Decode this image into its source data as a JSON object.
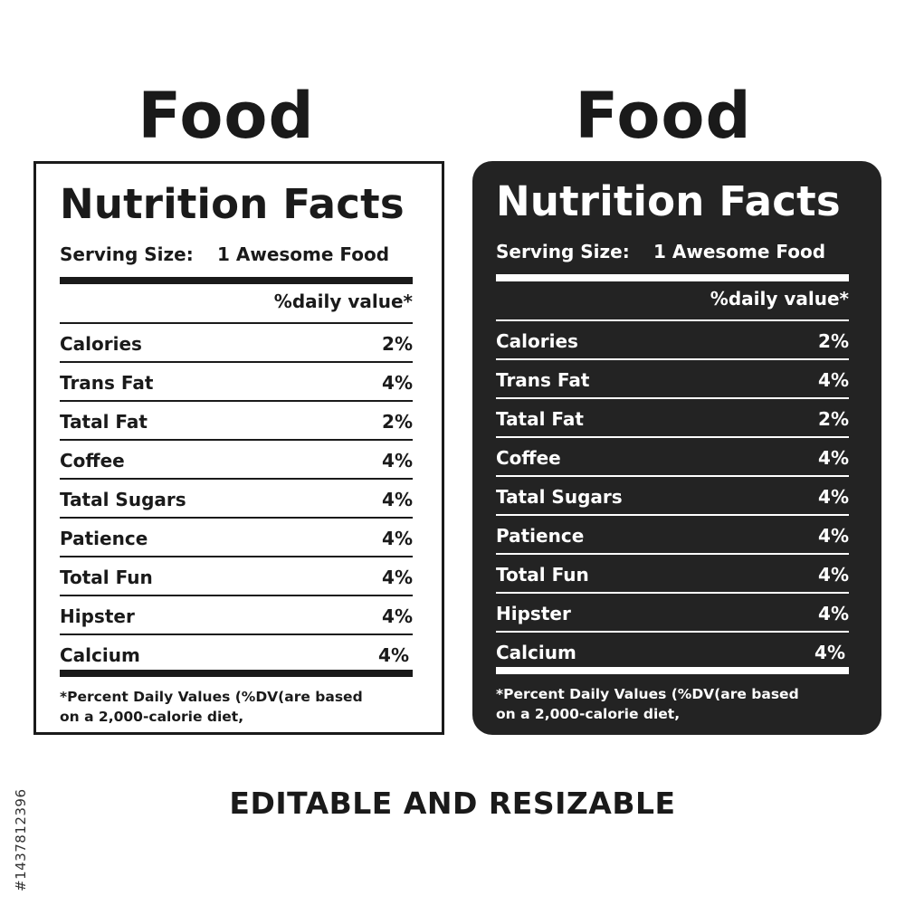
{
  "headings": {
    "left": "Food",
    "right": "Food"
  },
  "label": {
    "title": "Nutrition Facts",
    "serving_label": "Serving Size:",
    "serving_value": "1 Awesome Food",
    "daily_header": "%daily value*",
    "rows": [
      {
        "name": "Calories",
        "pct": "2%"
      },
      {
        "name": "Trans Fat",
        "pct": "4%"
      },
      {
        "name": "Tatal Fat",
        "pct": "2%"
      },
      {
        "name": "Coffee",
        "pct": "4%"
      },
      {
        "name": "Tatal Sugars",
        "pct": "4%"
      },
      {
        "name": "Patience",
        "pct": "4%"
      },
      {
        "name": "Total Fun",
        "pct": "4%"
      },
      {
        "name": "Hipster",
        "pct": "4%"
      },
      {
        "name": "Calcium",
        "pct": "4%"
      }
    ],
    "footnote_line1": "*Percent Daily Values (%DV(are  based",
    "footnote_line2": "on a 2,000-calorie diet,"
  },
  "tagline": "EDITABLE AND RESIZABLE",
  "side_id": "#1437812396",
  "colors": {
    "ink": "#1a1a1a",
    "dark_panel": "#232323",
    "paper": "#ffffff"
  }
}
